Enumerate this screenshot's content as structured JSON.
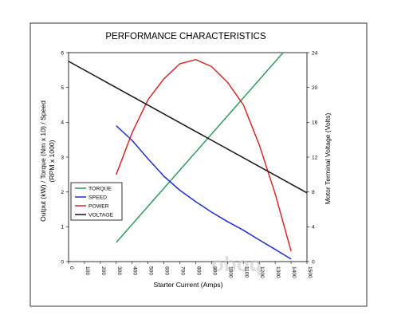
{
  "chart_data": {
    "type": "line",
    "title": "PERFORMANCE CHARACTERISTICS",
    "xlabel": "Starter Current (Amps)",
    "ylabel_left_line1": "Output (kW) / Torque (Nm x 10) / Speed",
    "ylabel_left_line2": "(RPM x 1000)",
    "ylabel_right": "Motor Terminal Voltage (Volts)",
    "xlim": [
      0,
      1500
    ],
    "ylim_left": [
      0,
      6
    ],
    "ylim_right": [
      0,
      24
    ],
    "x_ticks": [
      "0",
      "100",
      "200",
      "300",
      "400",
      "500",
      "600",
      "700",
      "800",
      "900",
      "1000",
      "1100",
      "1200",
      "1300",
      "1400",
      "1500"
    ],
    "y_left_ticks": [
      "0",
      "1",
      "2",
      "3",
      "4",
      "5",
      "6"
    ],
    "y_right_ticks": [
      "0",
      "4",
      "8",
      "12",
      "16",
      "20",
      "24"
    ],
    "grid": false,
    "legend_position": "left",
    "series": [
      {
        "name": "TORQUE",
        "color": "#2e9a5a",
        "axis": "left",
        "x": [
          300,
          1350
        ],
        "y": [
          0.55,
          6.0
        ]
      },
      {
        "name": "SPEED",
        "color": "#1f2fcf",
        "axis": "left",
        "x": [
          300,
          400,
          500,
          600,
          700,
          800,
          900,
          1000,
          1100,
          1200,
          1300,
          1400
        ],
        "y": [
          3.9,
          3.48,
          2.95,
          2.45,
          2.05,
          1.72,
          1.42,
          1.15,
          0.9,
          0.62,
          0.35,
          0.07
        ]
      },
      {
        "name": "POWER",
        "color": "#d62728",
        "axis": "left",
        "x": [
          300,
          400,
          500,
          600,
          700,
          800,
          900,
          1000,
          1100,
          1200,
          1300,
          1400
        ],
        "y": [
          2.5,
          3.7,
          4.65,
          5.25,
          5.68,
          5.8,
          5.6,
          5.15,
          4.5,
          3.35,
          1.95,
          0.3
        ]
      },
      {
        "name": "VOLTAGE",
        "color": "#111111",
        "axis": "right",
        "x": [
          0,
          1500
        ],
        "y": [
          23.0,
          7.9
        ]
      }
    ]
  },
  "watermark": {
    "text": "oboq",
    "suffix": ".ru"
  }
}
